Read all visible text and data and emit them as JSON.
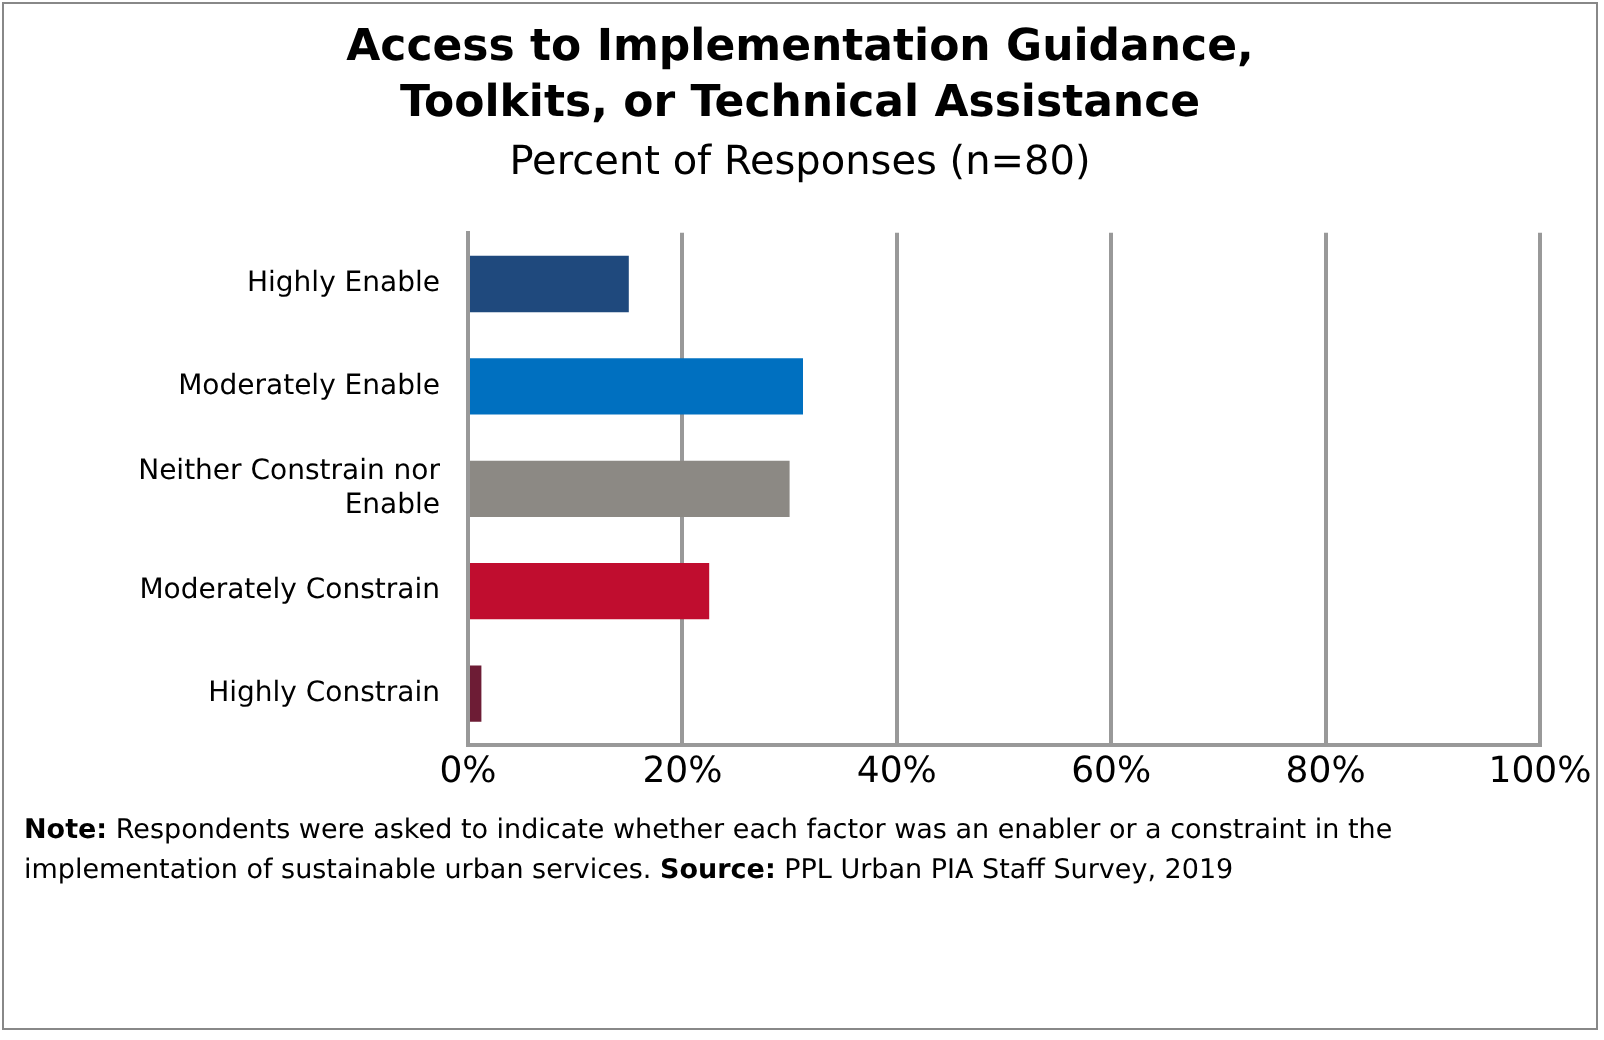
{
  "chart_data": {
    "type": "bar",
    "orientation": "horizontal",
    "title": "Access to Implementation Guidance, Toolkits, or Technical Assistance",
    "subtitle": "Percent of Responses (n=80)",
    "categories": [
      "Highly Enable",
      "Moderately Enable",
      "Neither Constrain nor Enable",
      "Moderately Constrain",
      "Highly Constrain"
    ],
    "values": [
      15,
      31.25,
      30,
      22.5,
      1.25
    ],
    "colors": [
      "#1f497d",
      "#0070c0",
      "#8c8984",
      "#c00d2f",
      "#6d1c35"
    ],
    "xlim": [
      0,
      100
    ],
    "xticks": [
      {
        "value": 0,
        "label": "0%"
      },
      {
        "value": 20,
        "label": "20%"
      },
      {
        "value": 40,
        "label": "40%"
      },
      {
        "value": 60,
        "label": "60%"
      },
      {
        "value": 80,
        "label": "80%"
      },
      {
        "value": 100,
        "label": "100%"
      }
    ],
    "grid": "x",
    "legend": false,
    "annotations": [
      "Note: Respondents were asked to indicate whether each factor was an enabler or a constraint in the implementation of sustainable urban services.",
      "Source: PPL Urban PIA Staff Survey, 2019"
    ]
  }
}
